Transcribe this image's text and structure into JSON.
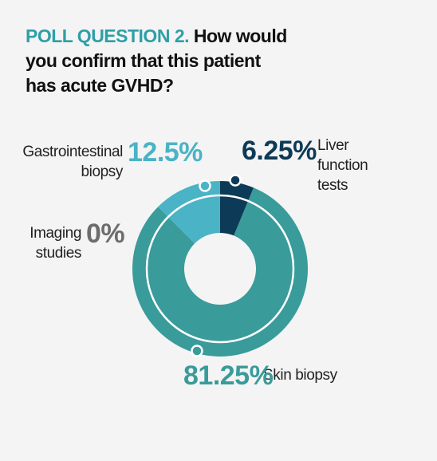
{
  "chart_data": {
    "type": "donut",
    "title_prefix": "POLL QUESTION 2.",
    "title": "How would you confirm that this patient has acute GVHD?",
    "categories": [
      "Liver function tests",
      "Skin biopsy",
      "Imaging studies",
      "Gastrointestinal biopsy"
    ],
    "values": [
      6.25,
      81.25,
      0,
      12.5
    ],
    "value_labels": [
      "6.25%",
      "81.25%",
      "0%",
      "12.5%"
    ],
    "colors": [
      "#0d3a56",
      "#3a9b9b",
      "#6d6d6d",
      "#4ab3c6"
    ],
    "value_label_colors": [
      "#0d3a56",
      "#3a9b9b",
      "#6d6d6d",
      "#4ab3c6"
    ],
    "title_prefix_color": "#2e9fa8"
  }
}
